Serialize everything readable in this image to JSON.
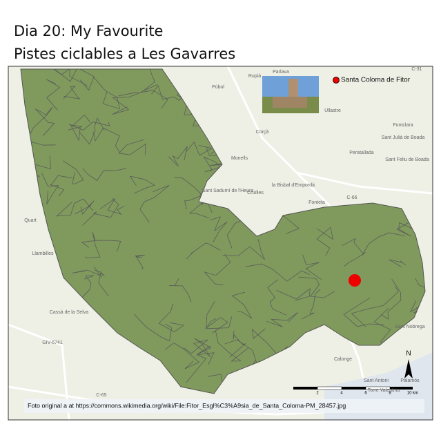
{
  "header": {
    "title_line1": "Dia 20: My Favourite",
    "title_line2": "Pistes ciclables a Les Gavarres"
  },
  "legend": {
    "label": "Santa Coloma de Fitor"
  },
  "caption": "Foto original a at https://commons.wikimedia.org/wiki/File:Fitor_Esgl%C3%A9sia_de_Santa_Coloma-PM_28457.jpg",
  "scale_bar": {
    "labels": [
      "2",
      "4",
      "6",
      "8",
      "10 km"
    ]
  },
  "north": "N",
  "places": [
    "Rupià",
    "Parlava",
    "Púbol",
    "Ullastre",
    "Corçà",
    "Fontclara",
    "Sant Julià de Boada",
    "Peratallada",
    "Monells",
    "Sant Feliu de Boada",
    "la Bisbal d'Empordà",
    "Sant Sadurní de l'Heura",
    "Cruïlles",
    "Fonteta",
    "Quart",
    "Llambilles",
    "Cassà de la Selva",
    "Calonge",
    "Sant Antoni",
    "Palamós",
    "Torre Valentina",
    "Sant Nobrega",
    "C-66",
    "C-65",
    "GIV-6741",
    "C-31"
  ]
}
